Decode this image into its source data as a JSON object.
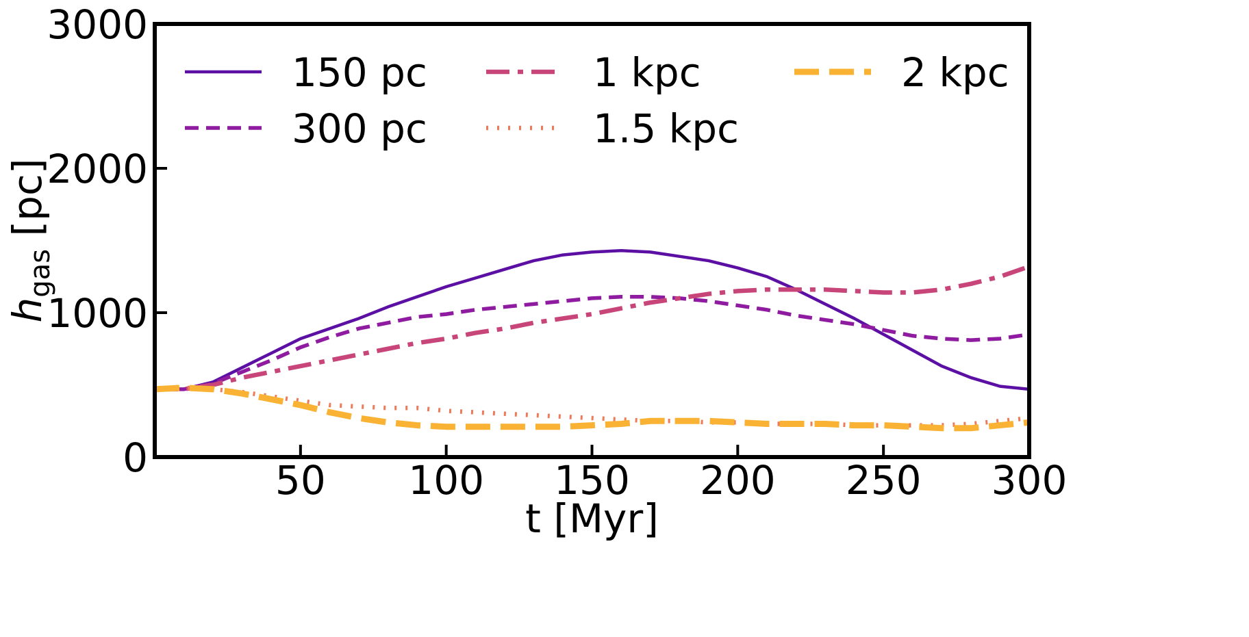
{
  "chart_data": {
    "type": "line",
    "xlabel": "t [Myr]",
    "ylabel": {
      "symbol": "h",
      "subscript": "gas",
      "unit": " [pc]"
    },
    "xlim": [
      0,
      300
    ],
    "ylim": [
      0,
      3000
    ],
    "xticks": [
      50,
      100,
      150,
      200,
      250,
      300
    ],
    "yticks": [
      0,
      1000,
      2000,
      3000
    ],
    "grid": false,
    "legend": {
      "placement": "top",
      "columns": 3,
      "order": [
        0,
        1,
        2,
        3,
        4
      ]
    },
    "series": [
      {
        "name": "150 pc",
        "color": "#5c0fa3",
        "style": "solid",
        "x": [
          0,
          10,
          20,
          30,
          40,
          50,
          60,
          70,
          80,
          90,
          100,
          110,
          120,
          130,
          140,
          150,
          160,
          170,
          180,
          190,
          200,
          210,
          220,
          230,
          240,
          250,
          260,
          270,
          280,
          290,
          300
        ],
        "y": [
          470,
          470,
          520,
          620,
          720,
          820,
          890,
          960,
          1040,
          1110,
          1180,
          1240,
          1300,
          1360,
          1400,
          1420,
          1430,
          1420,
          1390,
          1360,
          1310,
          1250,
          1160,
          1060,
          960,
          850,
          740,
          630,
          550,
          490,
          470
        ]
      },
      {
        "name": "300 pc",
        "color": "#8f1ca0",
        "style": "dashed",
        "x": [
          0,
          10,
          20,
          30,
          40,
          50,
          60,
          70,
          80,
          90,
          100,
          110,
          120,
          130,
          140,
          150,
          160,
          170,
          180,
          190,
          200,
          210,
          220,
          230,
          240,
          250,
          260,
          270,
          280,
          290,
          300
        ],
        "y": [
          470,
          470,
          510,
          590,
          670,
          760,
          830,
          890,
          930,
          970,
          990,
          1020,
          1040,
          1060,
          1080,
          1100,
          1110,
          1110,
          1100,
          1080,
          1050,
          1020,
          980,
          950,
          920,
          880,
          840,
          820,
          810,
          820,
          850
        ]
      },
      {
        "name": "1 kpc",
        "color": "#c8457a",
        "style": "dashdot",
        "x": [
          0,
          10,
          20,
          30,
          40,
          50,
          60,
          70,
          80,
          90,
          100,
          110,
          120,
          130,
          140,
          150,
          160,
          170,
          180,
          190,
          200,
          210,
          220,
          230,
          240,
          250,
          260,
          270,
          280,
          290,
          300
        ],
        "y": [
          470,
          470,
          500,
          550,
          590,
          630,
          670,
          710,
          750,
          790,
          820,
          860,
          890,
          930,
          960,
          990,
          1030,
          1070,
          1100,
          1130,
          1150,
          1160,
          1160,
          1160,
          1150,
          1140,
          1140,
          1160,
          1200,
          1250,
          1320
        ]
      },
      {
        "name": "1.5 kpc",
        "color": "#ec7b5a",
        "style": "dotted",
        "x": [
          0,
          10,
          20,
          30,
          40,
          50,
          60,
          70,
          80,
          90,
          100,
          110,
          120,
          130,
          140,
          150,
          160,
          170,
          180,
          190,
          200,
          210,
          220,
          230,
          240,
          250,
          260,
          270,
          280,
          290,
          300
        ],
        "y": [
          470,
          480,
          470,
          450,
          420,
          390,
          360,
          350,
          340,
          340,
          320,
          310,
          300,
          290,
          280,
          270,
          260,
          250,
          250,
          240,
          240,
          230,
          230,
          230,
          220,
          220,
          220,
          220,
          230,
          250,
          270
        ]
      },
      {
        "name": "2 kpc",
        "color": "#f9b233",
        "style": "dashed-thick",
        "x": [
          0,
          10,
          20,
          30,
          40,
          50,
          60,
          70,
          80,
          90,
          100,
          110,
          120,
          130,
          140,
          150,
          160,
          170,
          180,
          190,
          200,
          210,
          220,
          230,
          240,
          250,
          260,
          270,
          280,
          290,
          300
        ],
        "y": [
          470,
          480,
          470,
          440,
          400,
          360,
          310,
          270,
          240,
          220,
          210,
          210,
          210,
          210,
          210,
          220,
          230,
          250,
          250,
          250,
          240,
          230,
          230,
          230,
          220,
          220,
          210,
          200,
          200,
          220,
          240
        ]
      }
    ]
  }
}
